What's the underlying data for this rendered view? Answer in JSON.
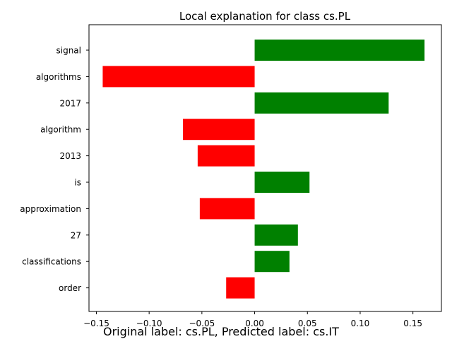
{
  "chart_data": {
    "type": "bar",
    "orientation": "horizontal",
    "title": "Local explanation for class cs.PL",
    "caption": "Original label: cs.PL, Predicted label: cs.IT",
    "xlabel": "",
    "ylabel": "",
    "xlim": [
      -0.157,
      0.177
    ],
    "xticks": [
      -0.15,
      -0.1,
      -0.05,
      0.0,
      0.05,
      0.1,
      0.15
    ],
    "xtick_labels": [
      "−0.15",
      "−0.10",
      "−0.05",
      "0.00",
      "0.05",
      "0.10",
      "0.15"
    ],
    "categories": [
      "signal",
      "algorithms",
      "2017",
      "algorithm",
      "2013",
      "is",
      "approximation",
      "27",
      "classifications",
      "order"
    ],
    "values": [
      0.161,
      -0.144,
      0.127,
      -0.068,
      -0.054,
      0.052,
      -0.052,
      0.041,
      0.033,
      -0.027
    ],
    "colors": {
      "positive": "#008000",
      "negative": "#ff0000"
    },
    "grid": false
  }
}
